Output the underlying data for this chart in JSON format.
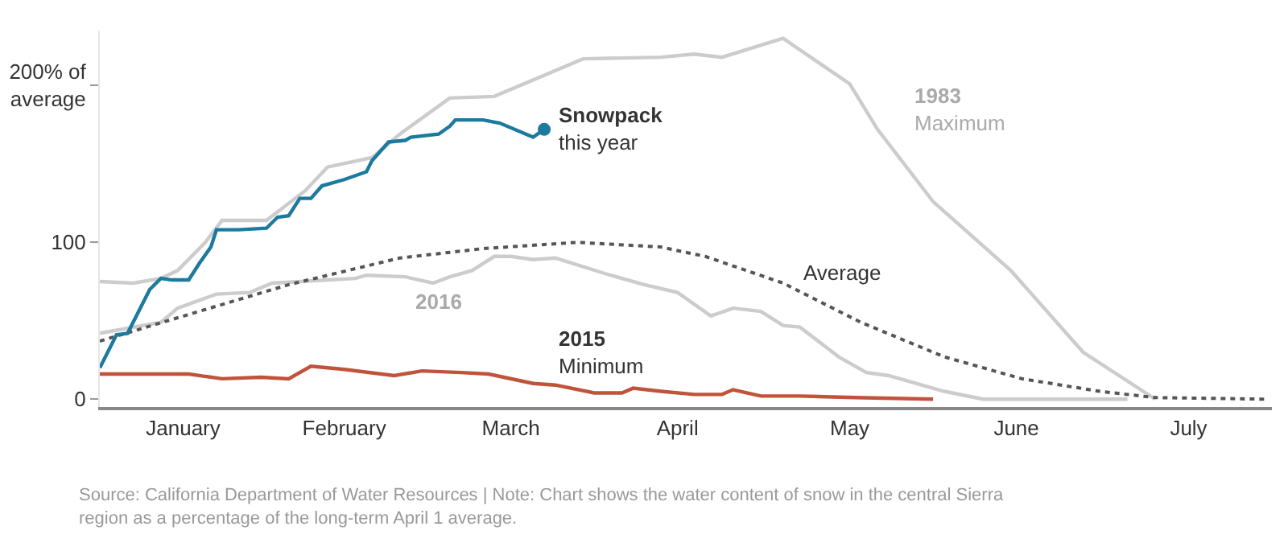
{
  "chart_data": {
    "type": "line",
    "xlim": [
      "--01-01",
      "--07-31"
    ],
    "xticks": [
      {
        "value": "--01-16",
        "label": "January"
      },
      {
        "value": "--02-14",
        "label": "February"
      },
      {
        "value": "--03-16",
        "label": "March"
      },
      {
        "value": "--04-15",
        "label": "April"
      },
      {
        "value": "--05-16",
        "label": "May"
      },
      {
        "value": "--06-15",
        "label": "June"
      },
      {
        "value": "--07-16",
        "label": "July"
      }
    ],
    "ylim": [
      -5,
      235
    ],
    "yticks": [
      0,
      100,
      {
        "value": 200,
        "label": "200% of average"
      }
    ],
    "grid": false,
    "series": [
      {
        "color": "#cccccc",
        "line_style": "solid",
        "x": [
          "--01-01",
          "--01-07",
          "--01-12",
          "--01-15",
          "--01-20",
          "--01-23",
          "--01-31",
          "--02-07",
          "--02-11",
          "--02-19",
          "--02-24",
          "--03-05",
          "--03-13",
          "--03-29",
          "--04-12",
          "--04-18",
          "--04-23",
          "--05-04",
          "--05-16",
          "--05-21",
          "--05-31",
          "--06-14",
          "--06-27",
          "--07-10"
        ],
        "values": [
          75,
          74,
          77,
          82,
          100,
          114,
          114,
          133,
          148,
          154,
          169,
          192,
          193,
          217,
          218,
          220,
          218,
          230,
          201,
          172,
          126,
          82,
          30,
          0
        ]
      },
      {
        "color": "#cccccc",
        "line_style": "solid",
        "x": [
          "--01-01",
          "--01-12",
          "--01-15",
          "--01-22",
          "--01-28",
          "--02-01",
          "--02-16",
          "--02-18",
          "--02-25",
          "--03-02",
          "--03-05",
          "--03-09",
          "--03-13",
          "--03-16",
          "--03-20",
          "--03-24",
          "--04-02",
          "--04-09",
          "--04-15",
          "--04-21",
          "--04-25",
          "--04-30",
          "--05-04",
          "--05-07",
          "--05-14",
          "--05-19",
          "--05-23",
          "--06-02",
          "--06-09",
          "--07-05"
        ],
        "values": [
          42,
          49,
          58,
          67,
          68,
          74,
          77,
          79,
          78,
          74,
          78,
          82,
          91,
          91,
          89,
          90,
          80,
          73,
          68,
          53,
          58,
          56,
          47,
          46,
          27,
          17,
          15,
          5,
          0,
          0
        ]
      },
      {
        "color": "#555555",
        "line_style": "dotted",
        "x": [
          "--01-01",
          "--01-17",
          "--02-04",
          "--02-24",
          "--03-11",
          "--03-28",
          "--04-12",
          "--04-20",
          "--05-04",
          "--05-18",
          "--06-02",
          "--06-16",
          "--06-30",
          "--07-10",
          "--07-30"
        ],
        "values": [
          37,
          54,
          73,
          90,
          96,
          100,
          97,
          91,
          74,
          49,
          27,
          13,
          5,
          1,
          0
        ]
      },
      {
        "color": "#c0533a",
        "line_style": "solid",
        "x": [
          "--01-01",
          "--01-17",
          "--01-23",
          "--01-30",
          "--02-04",
          "--02-08",
          "--02-14",
          "--02-23",
          "--02-28",
          "--03-07",
          "--03-12",
          "--03-20",
          "--03-24",
          "--03-31",
          "--04-05",
          "--04-07",
          "--04-12",
          "--04-18",
          "--04-23",
          "--04-25",
          "--04-30",
          "--05-07",
          "--05-17",
          "--05-31"
        ],
        "values": [
          16,
          16,
          13,
          14,
          13,
          21,
          19,
          15,
          18,
          17,
          16,
          10,
          9,
          4,
          4,
          7,
          5,
          3,
          3,
          6,
          2,
          2,
          1,
          0
        ]
      },
      {
        "color": "#1b7a9e",
        "line_style": "solid",
        "x": [
          "--01-01",
          "--01-04",
          "--01-06",
          "--01-08",
          "--01-10",
          "--01-12",
          "--01-14",
          "--01-17",
          "--01-19",
          "--01-21",
          "--01-22",
          "--01-26",
          "--01-31",
          "--02-02",
          "--02-04",
          "--02-06",
          "--02-08",
          "--02-10",
          "--02-14",
          "--02-18",
          "--02-19",
          "--02-22",
          "--02-25",
          "--02-26",
          "--03-03",
          "--03-05",
          "--03-06",
          "--03-11",
          "--03-14",
          "--03-20",
          "--03-22"
        ],
        "values": [
          20,
          41,
          42,
          56,
          70,
          77,
          76,
          76,
          87,
          97,
          108,
          108,
          109,
          116,
          117,
          128,
          128,
          136,
          140,
          145,
          152,
          164,
          165,
          167,
          169,
          174,
          178,
          178,
          176,
          167,
          172
        ]
      },
      {
        "type": "scatter",
        "marker": "circle",
        "color": "#1b7a9e",
        "x": [
          "--03-22"
        ],
        "values": [
          172
        ]
      }
    ],
    "annotations": [
      "Snowpack\nthis year",
      "1983\nMaximum",
      "Average",
      "2016",
      "2015\nMinimum",
      "Source: California Department of Water Resources | Note: Chart shows the water content of snow in the central Sierra region as a percentage of the long-term April 1 average."
    ]
  }
}
